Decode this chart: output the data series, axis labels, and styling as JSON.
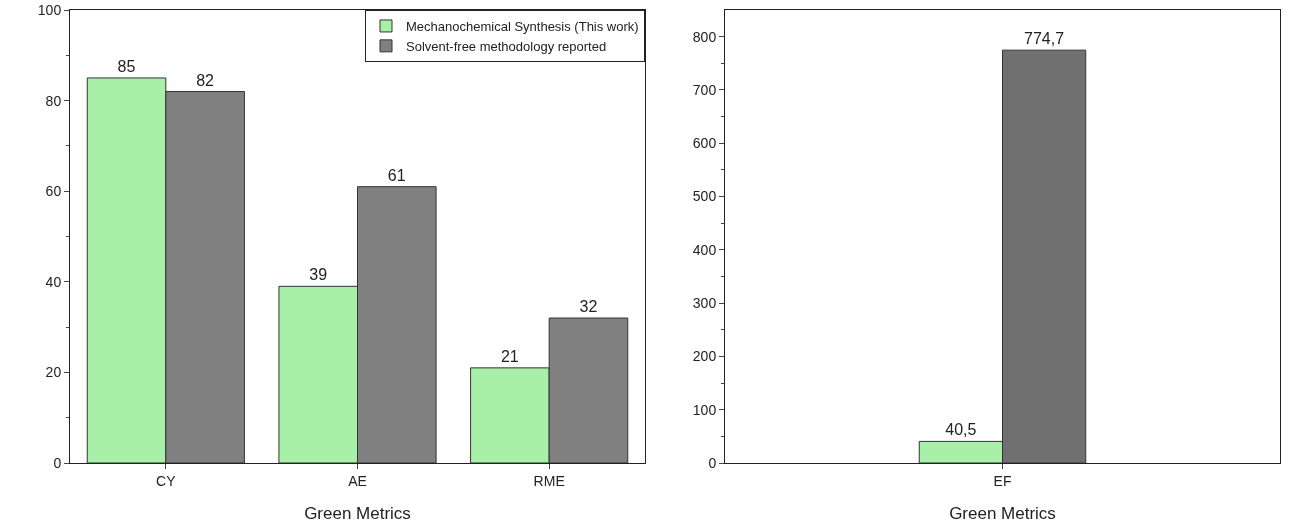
{
  "chart_data": [
    {
      "type": "bar",
      "xlabel": "Green Metrics",
      "categories": [
        "CY",
        "AE",
        "RME"
      ],
      "series": [
        {
          "name": "Mechanochemical Synthesis (This work)",
          "color": "#a8f0a8",
          "values": [
            85,
            39,
            21
          ]
        },
        {
          "name": "Solvent-free methodology reported",
          "color": "#808080",
          "values": [
            82,
            61,
            32
          ]
        }
      ],
      "ylim": [
        0,
        100
      ],
      "yticks": [
        0,
        20,
        40,
        60,
        80,
        100
      ],
      "data_labels": true,
      "legend": "top right",
      "grid": false
    },
    {
      "type": "bar",
      "xlabel": "Green Metrics",
      "categories": [
        "EF"
      ],
      "series": [
        {
          "color": "#a8f0a8",
          "values": [
            40.5
          ],
          "value_labels": [
            "40,5"
          ]
        },
        {
          "color": "#707070",
          "values": [
            774.7
          ],
          "value_labels": [
            "774,7"
          ]
        }
      ],
      "ylim": [
        0,
        850
      ],
      "yticks": [
        0,
        100,
        200,
        300,
        400,
        500,
        600,
        700,
        800
      ],
      "legend": false,
      "grid": false
    }
  ]
}
